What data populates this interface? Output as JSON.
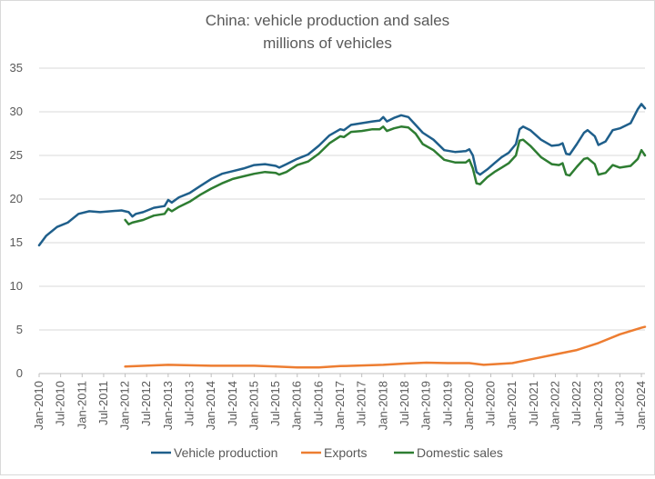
{
  "chart_data": {
    "type": "line",
    "title": "China: vehicle production and sales",
    "subtitle": "millions of vehicles",
    "xlabel": "",
    "ylabel": "",
    "ylim": [
      0,
      35
    ],
    "yticks": [
      0,
      5,
      10,
      15,
      20,
      25,
      30,
      35
    ],
    "grid": true,
    "legend_position": "bottom",
    "x_start": "Jan-2010",
    "x_end": "Jan-2024",
    "x_tick_labels": [
      "Jan-2010",
      "Jul-2010",
      "Jan-2011",
      "Jul-2011",
      "Jan-2012",
      "Jul-2012",
      "Jan-2013",
      "Jul-2013",
      "Jan-2014",
      "Jul-2014",
      "Jan-2015",
      "Jul-2015",
      "Jan-2016",
      "Jul-2016",
      "Jan-2017",
      "Jul-2017",
      "Jan-2018",
      "Jul-2018",
      "Jan-2019",
      "Jul-2019",
      "Jan-2020",
      "Jul-2020",
      "Jan-2021",
      "Jul-2021",
      "Jan-2022",
      "Jul-2022",
      "Jan-2023",
      "Jul-2023",
      "Jan-2024"
    ],
    "series": [
      {
        "name": "Vehicle production",
        "color": "#1f5f8b",
        "points": [
          [
            "Jan-2010",
            14.7
          ],
          [
            "Mar-2010",
            15.8
          ],
          [
            "Jun-2010",
            16.8
          ],
          [
            "Sep-2010",
            17.3
          ],
          [
            "Dec-2010",
            18.3
          ],
          [
            "Mar-2011",
            18.6
          ],
          [
            "Jun-2011",
            18.5
          ],
          [
            "Sep-2011",
            18.6
          ],
          [
            "Dec-2011",
            18.7
          ],
          [
            "Feb-2012",
            18.5
          ],
          [
            "Mar-2012",
            18.0
          ],
          [
            "Apr-2012",
            18.3
          ],
          [
            "Jun-2012",
            18.5
          ],
          [
            "Sep-2012",
            19.0
          ],
          [
            "Dec-2012",
            19.2
          ],
          [
            "Jan-2013",
            19.9
          ],
          [
            "Feb-2013",
            19.6
          ],
          [
            "Apr-2013",
            20.2
          ],
          [
            "Jul-2013",
            20.7
          ],
          [
            "Oct-2013",
            21.5
          ],
          [
            "Jan-2014",
            22.3
          ],
          [
            "Apr-2014",
            22.9
          ],
          [
            "Jul-2014",
            23.2
          ],
          [
            "Oct-2014",
            23.5
          ],
          [
            "Jan-2015",
            23.9
          ],
          [
            "Apr-2015",
            24.0
          ],
          [
            "Jul-2015",
            23.8
          ],
          [
            "Aug-2015",
            23.6
          ],
          [
            "Oct-2015",
            24.0
          ],
          [
            "Jan-2016",
            24.6
          ],
          [
            "Apr-2016",
            25.1
          ],
          [
            "Jul-2016",
            26.1
          ],
          [
            "Oct-2016",
            27.3
          ],
          [
            "Jan-2017",
            28.0
          ],
          [
            "Feb-2017",
            27.9
          ],
          [
            "Apr-2017",
            28.5
          ],
          [
            "Jul-2017",
            28.7
          ],
          [
            "Oct-2017",
            28.9
          ],
          [
            "Dec-2017",
            29.0
          ],
          [
            "Jan-2018",
            29.4
          ],
          [
            "Feb-2018",
            28.9
          ],
          [
            "Apr-2018",
            29.3
          ],
          [
            "Jun-2018",
            29.6
          ],
          [
            "Aug-2018",
            29.4
          ],
          [
            "Oct-2018",
            28.5
          ],
          [
            "Dec-2018",
            27.6
          ],
          [
            "Mar-2019",
            26.8
          ],
          [
            "Jun-2019",
            25.6
          ],
          [
            "Sep-2019",
            25.4
          ],
          [
            "Dec-2019",
            25.5
          ],
          [
            "Jan-2020",
            25.7
          ],
          [
            "Feb-2020",
            25.0
          ],
          [
            "Mar-2020",
            23.1
          ],
          [
            "Apr-2020",
            22.8
          ],
          [
            "Jun-2020",
            23.4
          ],
          [
            "Aug-2020",
            24.1
          ],
          [
            "Oct-2020",
            24.8
          ],
          [
            "Dec-2020",
            25.3
          ],
          [
            "Feb-2021",
            26.3
          ],
          [
            "Mar-2021",
            28.0
          ],
          [
            "Apr-2021",
            28.3
          ],
          [
            "Jun-2021",
            27.9
          ],
          [
            "Sep-2021",
            26.8
          ],
          [
            "Dec-2021",
            26.1
          ],
          [
            "Feb-2022",
            26.2
          ],
          [
            "Mar-2022",
            26.4
          ],
          [
            "Apr-2022",
            25.2
          ],
          [
            "May-2022",
            25.1
          ],
          [
            "Jul-2022",
            26.3
          ],
          [
            "Sep-2022",
            27.6
          ],
          [
            "Oct-2022",
            27.9
          ],
          [
            "Dec-2022",
            27.2
          ],
          [
            "Jan-2023",
            26.2
          ],
          [
            "Mar-2023",
            26.6
          ],
          [
            "May-2023",
            27.9
          ],
          [
            "Jul-2023",
            28.1
          ],
          [
            "Oct-2023",
            28.7
          ],
          [
            "Dec-2023",
            30.3
          ],
          [
            "Jan-2024",
            30.9
          ],
          [
            "Feb-2024",
            30.4
          ]
        ]
      },
      {
        "name": "Exports",
        "color": "#ed7d31",
        "points": [
          [
            "Jan-2012",
            0.8
          ],
          [
            "Jan-2013",
            1.0
          ],
          [
            "Jul-2013",
            0.95
          ],
          [
            "Jan-2014",
            0.9
          ],
          [
            "Jan-2015",
            0.9
          ],
          [
            "Jul-2015",
            0.8
          ],
          [
            "Jan-2016",
            0.7
          ],
          [
            "Jul-2016",
            0.7
          ],
          [
            "Jan-2017",
            0.85
          ],
          [
            "Jan-2018",
            1.0
          ],
          [
            "Jul-2018",
            1.15
          ],
          [
            "Jan-2019",
            1.25
          ],
          [
            "Jul-2019",
            1.2
          ],
          [
            "Jan-2020",
            1.2
          ],
          [
            "May-2020",
            1.0
          ],
          [
            "Jan-2021",
            1.2
          ],
          [
            "Jul-2021",
            1.7
          ],
          [
            "Jan-2022",
            2.2
          ],
          [
            "Jul-2022",
            2.7
          ],
          [
            "Jan-2023",
            3.5
          ],
          [
            "Jul-2023",
            4.5
          ],
          [
            "Jan-2024",
            5.25
          ],
          [
            "Feb-2024",
            5.35
          ]
        ]
      },
      {
        "name": "Domestic sales",
        "color": "#2e7d32",
        "points": [
          [
            "Jan-2012",
            17.6
          ],
          [
            "Feb-2012",
            17.1
          ],
          [
            "Mar-2012",
            17.3
          ],
          [
            "Jun-2012",
            17.6
          ],
          [
            "Sep-2012",
            18.1
          ],
          [
            "Dec-2012",
            18.3
          ],
          [
            "Jan-2013",
            18.9
          ],
          [
            "Feb-2013",
            18.6
          ],
          [
            "Apr-2013",
            19.1
          ],
          [
            "Jul-2013",
            19.7
          ],
          [
            "Oct-2013",
            20.5
          ],
          [
            "Jan-2014",
            21.2
          ],
          [
            "Apr-2014",
            21.8
          ],
          [
            "Jul-2014",
            22.3
          ],
          [
            "Oct-2014",
            22.6
          ],
          [
            "Jan-2015",
            22.9
          ],
          [
            "Apr-2015",
            23.1
          ],
          [
            "Jul-2015",
            23.0
          ],
          [
            "Aug-2015",
            22.8
          ],
          [
            "Oct-2015",
            23.1
          ],
          [
            "Jan-2016",
            23.9
          ],
          [
            "Apr-2016",
            24.3
          ],
          [
            "Jul-2016",
            25.2
          ],
          [
            "Oct-2016",
            26.4
          ],
          [
            "Jan-2017",
            27.2
          ],
          [
            "Feb-2017",
            27.1
          ],
          [
            "Apr-2017",
            27.7
          ],
          [
            "Jul-2017",
            27.8
          ],
          [
            "Oct-2017",
            28.0
          ],
          [
            "Dec-2017",
            28.0
          ],
          [
            "Jan-2018",
            28.3
          ],
          [
            "Feb-2018",
            27.8
          ],
          [
            "Apr-2018",
            28.1
          ],
          [
            "Jun-2018",
            28.3
          ],
          [
            "Aug-2018",
            28.2
          ],
          [
            "Oct-2018",
            27.5
          ],
          [
            "Dec-2018",
            26.3
          ],
          [
            "Mar-2019",
            25.6
          ],
          [
            "Jun-2019",
            24.5
          ],
          [
            "Sep-2019",
            24.2
          ],
          [
            "Dec-2019",
            24.2
          ],
          [
            "Jan-2020",
            24.5
          ],
          [
            "Feb-2020",
            23.5
          ],
          [
            "Mar-2020",
            21.8
          ],
          [
            "Apr-2020",
            21.7
          ],
          [
            "Jun-2020",
            22.5
          ],
          [
            "Aug-2020",
            23.1
          ],
          [
            "Oct-2020",
            23.6
          ],
          [
            "Dec-2020",
            24.1
          ],
          [
            "Feb-2021",
            25.0
          ],
          [
            "Mar-2021",
            26.7
          ],
          [
            "Apr-2021",
            26.8
          ],
          [
            "Jun-2021",
            26.1
          ],
          [
            "Sep-2021",
            24.8
          ],
          [
            "Dec-2021",
            24.0
          ],
          [
            "Feb-2022",
            23.9
          ],
          [
            "Mar-2022",
            24.1
          ],
          [
            "Apr-2022",
            22.8
          ],
          [
            "May-2022",
            22.7
          ],
          [
            "Jul-2022",
            23.7
          ],
          [
            "Sep-2022",
            24.6
          ],
          [
            "Oct-2022",
            24.7
          ],
          [
            "Dec-2022",
            24.0
          ],
          [
            "Jan-2023",
            22.8
          ],
          [
            "Mar-2023",
            23.0
          ],
          [
            "May-2023",
            23.9
          ],
          [
            "Jul-2023",
            23.6
          ],
          [
            "Oct-2023",
            23.8
          ],
          [
            "Dec-2023",
            24.6
          ],
          [
            "Jan-2024",
            25.6
          ],
          [
            "Feb-2024",
            25.0
          ]
        ]
      }
    ]
  }
}
